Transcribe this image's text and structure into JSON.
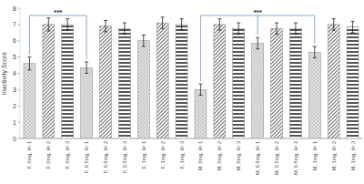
{
  "chart_data": {
    "type": "bar",
    "y_label": "Inactivity Score",
    "categories": [
      "F, 0mg, Hr 1",
      "F, 0mg, Hr 2",
      "F, 0mg, Hr 3",
      "F, 0.5mg, Hr 1",
      "F, 0.5mg, Hr 2",
      "F, 0.5mg, Hr 3",
      "F, 1mg, Hr 1",
      "F, 1mg, Hr 2",
      "F, 1mg, Hr 3",
      "M, 0mg, Hr 1",
      "M, 0mg, Hr 2",
      "M, 0mg, Hr 3",
      "M, 0.5mg, Hr 1",
      "M, 0.5mg, Hr 2",
      "M, 0.5mg, Hr 3",
      "M, 1mg, Hr 1",
      "M, 1mg, Hr 2",
      "M, 1mg, Hr 3"
    ],
    "values": [
      4.6,
      7.0,
      7.0,
      4.35,
      6.9,
      6.75,
      6.0,
      7.1,
      7.0,
      3.0,
      7.0,
      6.75,
      5.85,
      6.75,
      6.75,
      5.3,
      7.0,
      6.85
    ],
    "errors": [
      0.4,
      0.4,
      0.35,
      0.35,
      0.35,
      0.35,
      0.35,
      0.35,
      0.35,
      0.35,
      0.35,
      0.35,
      0.35,
      0.35,
      0.35,
      0.35,
      0.35,
      0.35
    ],
    "colors": [
      "#c8c8c8",
      "#6f6f6f",
      "#555555",
      "#c8c8c8",
      "#6f6f6f",
      "#555555",
      "#c8c8c8",
      "#6f6f6f",
      "#555555",
      "#c8c8c8",
      "#6f6f6f",
      "#555555",
      "#c8c8c8",
      "#6f6f6f",
      "#555555",
      "#c8c8c8",
      "#6f6f6f",
      "#555555"
    ],
    "ylim": [
      0,
      8
    ],
    "yticks": [
      0,
      1,
      2,
      3,
      4,
      5,
      6,
      7,
      8
    ],
    "grid": false,
    "annotations": [
      {
        "text": "***",
        "categories": [
          "F, 0mg, Hr 1",
          "F, 0.5mg, Hr 1"
        ]
      },
      {
        "text": "***",
        "categories": [
          "M, 0mg, Hr 1",
          "M, 0.5mg, Hr 1",
          "M, 1mg, Hr 1"
        ]
      }
    ]
  }
}
